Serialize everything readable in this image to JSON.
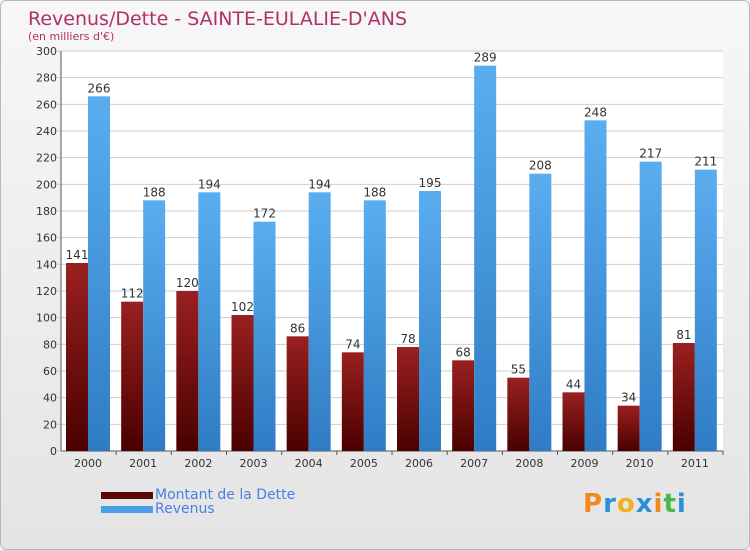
{
  "chart_data": {
    "type": "bar",
    "title": "Revenus/Dette - SAINTE-EULALIE-D'ANS",
    "subtitle": "(en milliers d'€)",
    "categories": [
      "2000",
      "2001",
      "2002",
      "2003",
      "2004",
      "2005",
      "2006",
      "2007",
      "2008",
      "2009",
      "2010",
      "2011"
    ],
    "series": [
      {
        "name": "Montant de la Dette",
        "color": "#7a1010",
        "values": [
          141,
          112,
          120,
          102,
          86,
          74,
          78,
          68,
          55,
          44,
          34,
          81
        ]
      },
      {
        "name": "Revenus",
        "color": "#4a9fe6",
        "values": [
          266,
          188,
          194,
          172,
          194,
          188,
          195,
          289,
          208,
          248,
          217,
          211
        ]
      }
    ],
    "ylim": [
      0,
      300
    ],
    "yticks": [
      0,
      20,
      40,
      60,
      80,
      100,
      120,
      140,
      160,
      180,
      200,
      220,
      240,
      260,
      280,
      300
    ],
    "grid": true,
    "legend_position": "bottom-left"
  },
  "logo": {
    "text": "Proxiti"
  }
}
